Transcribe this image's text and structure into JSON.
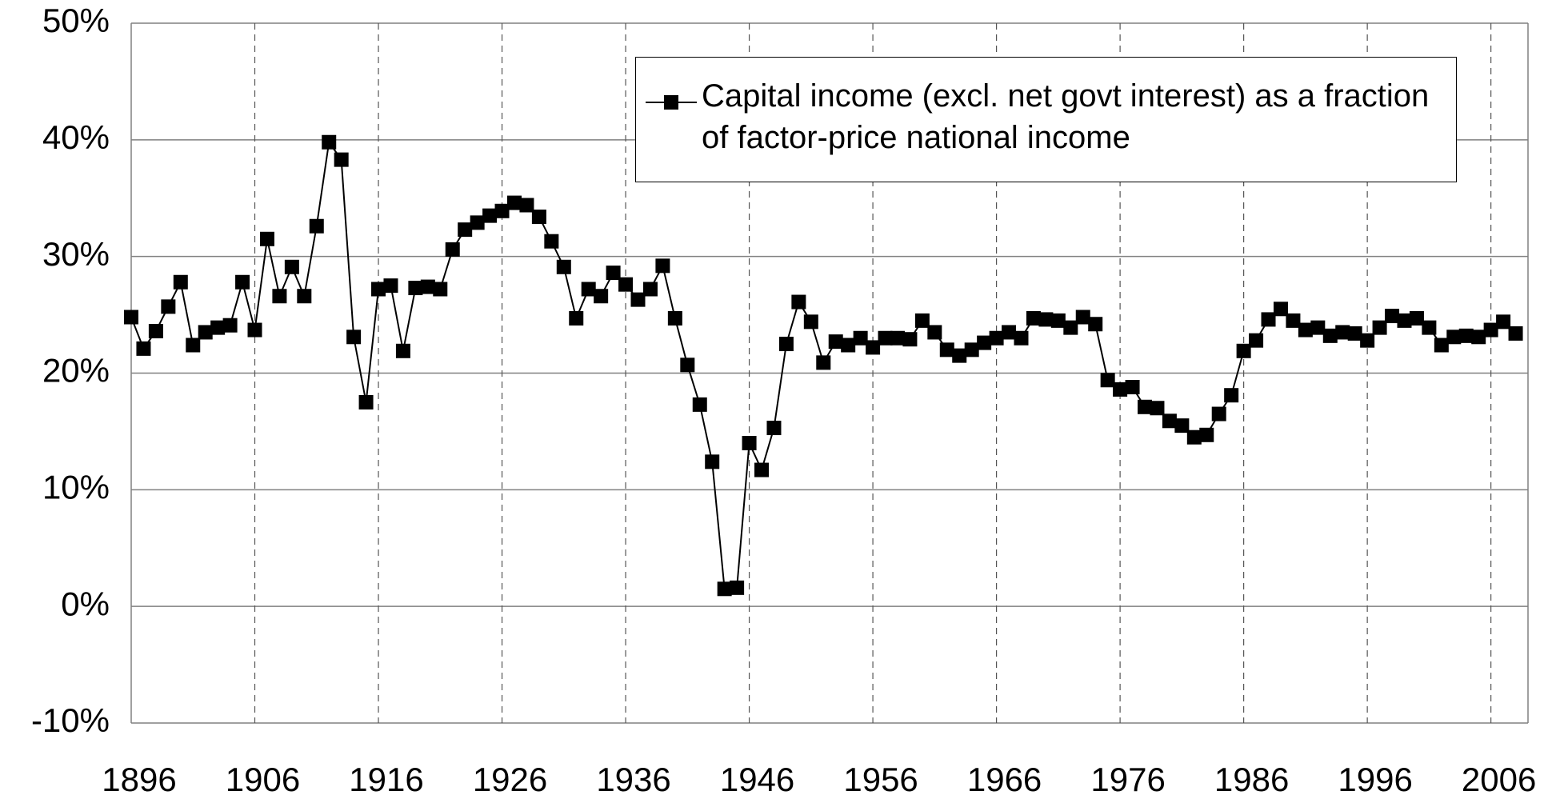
{
  "chart_data": {
    "type": "line",
    "x": [
      1896,
      1897,
      1898,
      1899,
      1900,
      1901,
      1902,
      1903,
      1904,
      1905,
      1906,
      1907,
      1908,
      1909,
      1910,
      1911,
      1912,
      1913,
      1914,
      1915,
      1916,
      1917,
      1918,
      1919,
      1920,
      1921,
      1922,
      1923,
      1924,
      1925,
      1926,
      1927,
      1928,
      1929,
      1930,
      1931,
      1932,
      1933,
      1934,
      1935,
      1936,
      1937,
      1938,
      1939,
      1940,
      1941,
      1942,
      1943,
      1944,
      1945,
      1946,
      1947,
      1948,
      1949,
      1950,
      1951,
      1952,
      1953,
      1954,
      1955,
      1956,
      1957,
      1958,
      1959,
      1960,
      1961,
      1962,
      1963,
      1964,
      1965,
      1966,
      1967,
      1968,
      1969,
      1970,
      1971,
      1972,
      1973,
      1974,
      1975,
      1976,
      1977,
      1978,
      1979,
      1980,
      1981,
      1982,
      1983,
      1984,
      1985,
      1986,
      1987,
      1988,
      1989,
      1990,
      1991,
      1992,
      1993,
      1994,
      1995,
      1996,
      1997,
      1998,
      1999,
      2000,
      2001,
      2002,
      2003,
      2004,
      2005,
      2006,
      2007,
      2008
    ],
    "series": [
      {
        "name": "Capital income (excl. net govt interest) as a fraction of factor-price national income",
        "color": "#000000",
        "values": [
          24.8,
          22.1,
          23.6,
          25.7,
          27.8,
          22.4,
          23.5,
          23.9,
          24.1,
          27.8,
          23.7,
          31.5,
          26.6,
          29.1,
          26.6,
          32.6,
          39.8,
          38.3,
          23.1,
          17.5,
          27.2,
          27.5,
          21.9,
          27.3,
          27.4,
          27.2,
          30.6,
          32.3,
          32.9,
          33.5,
          33.9,
          34.6,
          34.4,
          33.4,
          31.3,
          29.1,
          24.7,
          27.2,
          26.6,
          28.6,
          27.6,
          26.3,
          27.2,
          29.2,
          24.7,
          20.7,
          17.3,
          12.4,
          1.5,
          1.6,
          14.0,
          11.7,
          15.3,
          22.5,
          26.1,
          24.4,
          20.9,
          22.7,
          22.4,
          23.0,
          22.2,
          23.0,
          23.0,
          22.9,
          24.5,
          23.5,
          22.0,
          21.5,
          22.0,
          22.6,
          23.0,
          23.5,
          23.0,
          24.7,
          24.6,
          24.5,
          23.9,
          24.8,
          24.2,
          19.4,
          18.6,
          18.8,
          17.1,
          17.0,
          15.9,
          15.5,
          14.5,
          14.7,
          16.5,
          18.1,
          21.9,
          22.8,
          24.6,
          25.5,
          24.5,
          23.7,
          23.9,
          23.2,
          23.5,
          23.4,
          22.8,
          23.9,
          24.9,
          24.5,
          24.7,
          23.9,
          22.4,
          23.1,
          23.2,
          23.1,
          23.7,
          24.4,
          23.4
        ]
      }
    ],
    "xlim": [
      1896,
      2009
    ],
    "xticks": [
      1896,
      1906,
      1916,
      1926,
      1936,
      1946,
      1956,
      1966,
      1976,
      1986,
      1996,
      2006
    ],
    "ylim": [
      -10,
      50
    ],
    "yticks": [
      {
        "value": -10,
        "label": "-10%"
      },
      {
        "value": 0,
        "label": "0%"
      },
      {
        "value": 10,
        "label": "10%"
      },
      {
        "value": 20,
        "label": "20%"
      },
      {
        "value": 30,
        "label": "30%"
      },
      {
        "value": 40,
        "label": "40%"
      },
      {
        "value": 50,
        "label": "50%"
      }
    ],
    "grid": true,
    "legend": "top-right"
  }
}
